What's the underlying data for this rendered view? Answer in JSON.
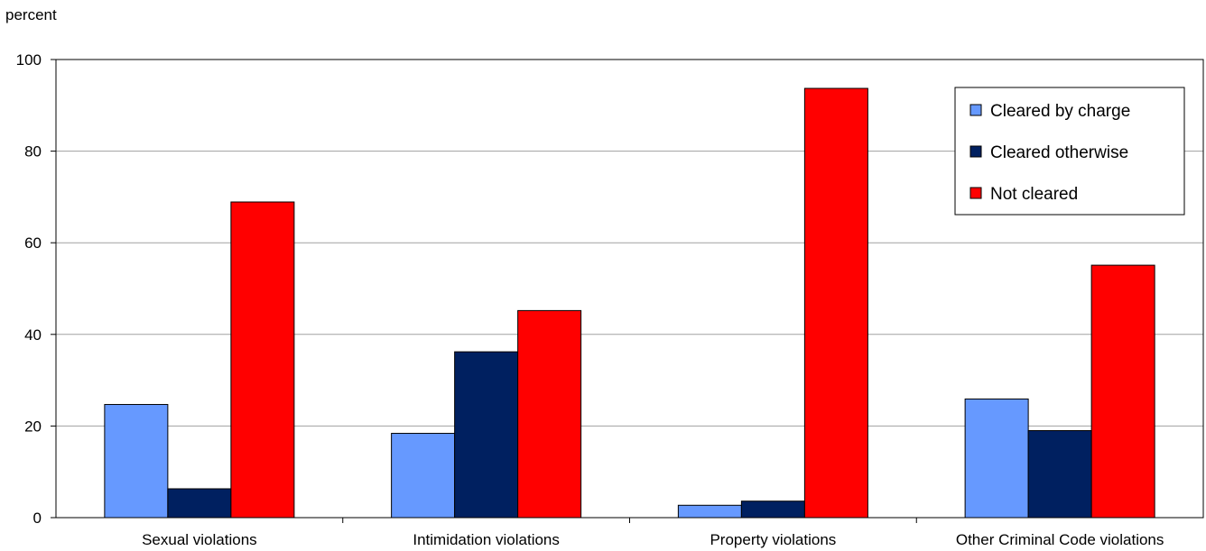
{
  "chart_data": {
    "type": "bar",
    "title": "",
    "xlabel": "",
    "ylabel": "percent",
    "ylim": [
      0,
      100
    ],
    "yticks": [
      0,
      20,
      40,
      60,
      80,
      100
    ],
    "grid": true,
    "legend_position": "top-right",
    "categories": [
      "Sexual violations",
      "Intimidation violations",
      "Property violations",
      "Other Criminal Code violations"
    ],
    "series": [
      {
        "name": "Cleared by charge",
        "color": "#6699FF",
        "values": [
          24.7,
          18.4,
          2.7,
          25.9
        ]
      },
      {
        "name": "Cleared otherwise",
        "color": "#002060",
        "values": [
          6.3,
          36.2,
          3.6,
          19.0
        ]
      },
      {
        "name": "Not cleared",
        "color": "#FF0000",
        "values": [
          68.9,
          45.2,
          93.7,
          55.1
        ]
      }
    ]
  }
}
